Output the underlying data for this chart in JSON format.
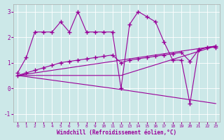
{
  "xlabel": "Windchill (Refroidissement éolien,°C)",
  "background_color": "#cce8e8",
  "line_color": "#990099",
  "xlim": [
    -0.5,
    23.5
  ],
  "ylim": [
    -1.3,
    3.3
  ],
  "yticks": [
    -1,
    0,
    1,
    2,
    3
  ],
  "xticks": [
    0,
    1,
    2,
    3,
    4,
    5,
    6,
    7,
    8,
    9,
    10,
    11,
    12,
    13,
    14,
    15,
    16,
    17,
    18,
    19,
    20,
    21,
    22,
    23
  ],
  "series1_x": [
    0,
    1,
    2,
    3,
    4,
    5,
    6,
    7,
    8,
    9,
    10,
    11,
    12,
    13,
    14,
    15,
    16,
    17,
    18,
    19,
    20,
    21,
    22,
    23
  ],
  "series1_y": [
    0.6,
    1.2,
    2.2,
    2.2,
    2.2,
    2.6,
    2.2,
    3.0,
    2.2,
    2.2,
    2.2,
    2.2,
    0.0,
    2.5,
    3.0,
    2.8,
    2.6,
    1.8,
    1.1,
    1.1,
    -0.6,
    1.5,
    1.6,
    1.6
  ],
  "series2_x": [
    0,
    1,
    2,
    3,
    4,
    5,
    6,
    7,
    8,
    9,
    10,
    11,
    12,
    13,
    14,
    15,
    16,
    17,
    18,
    19,
    20,
    21,
    22,
    23
  ],
  "series2_y": [
    0.5,
    0.6,
    0.7,
    0.8,
    0.9,
    1.0,
    1.05,
    1.1,
    1.15,
    1.2,
    1.25,
    1.3,
    1.0,
    1.1,
    1.15,
    1.2,
    1.25,
    1.3,
    1.35,
    1.4,
    1.05,
    1.5,
    1.6,
    1.65
  ],
  "series3_x": [
    0,
    23
  ],
  "series3_y": [
    0.5,
    1.65
  ],
  "series4_x": [
    0,
    12,
    23
  ],
  "series4_y": [
    0.5,
    -0.05,
    -0.6
  ],
  "series5_x": [
    0,
    12,
    23
  ],
  "series5_y": [
    0.5,
    0.5,
    1.65
  ]
}
